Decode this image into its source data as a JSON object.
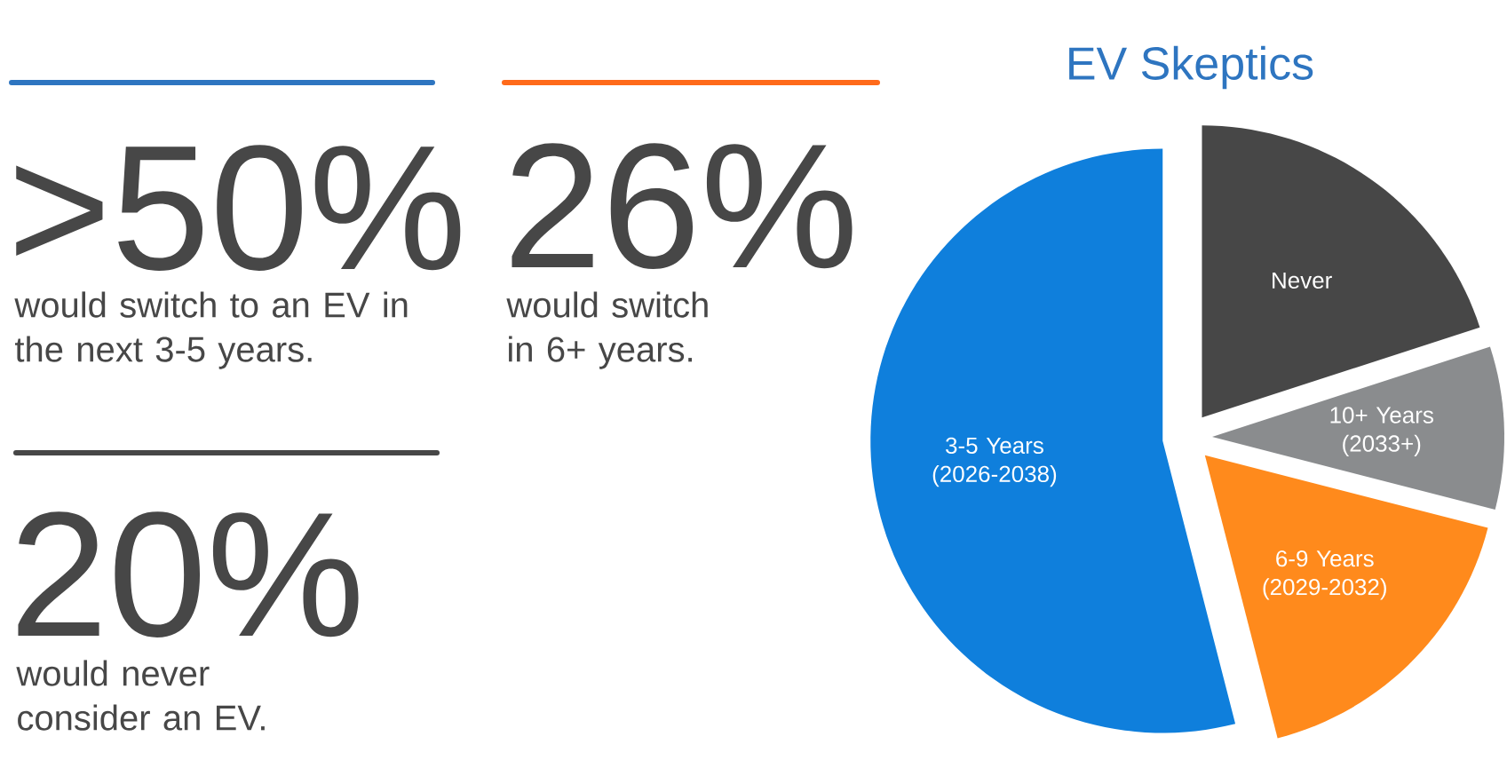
{
  "chart_data": [
    {
      "type": "other",
      "annotations": [
        ">50%",
        "would switch to an EV in the next 3-5 years.",
        "26%",
        "would switch in 6+ years.",
        "20%",
        "would never consider an EV."
      ]
    },
    {
      "type": "pie",
      "title": "EV Skeptics",
      "categories": [
        "Never",
        "10+ Years (2033+)",
        "6-9 Years (2029-2032)",
        "3-5 Years (2026-2038)"
      ],
      "values": [
        20,
        9,
        17,
        54
      ],
      "colors": [
        "#474747",
        "#8a8c8e",
        "#ff8a1c",
        "#0f7fdc"
      ]
    }
  ]
}
